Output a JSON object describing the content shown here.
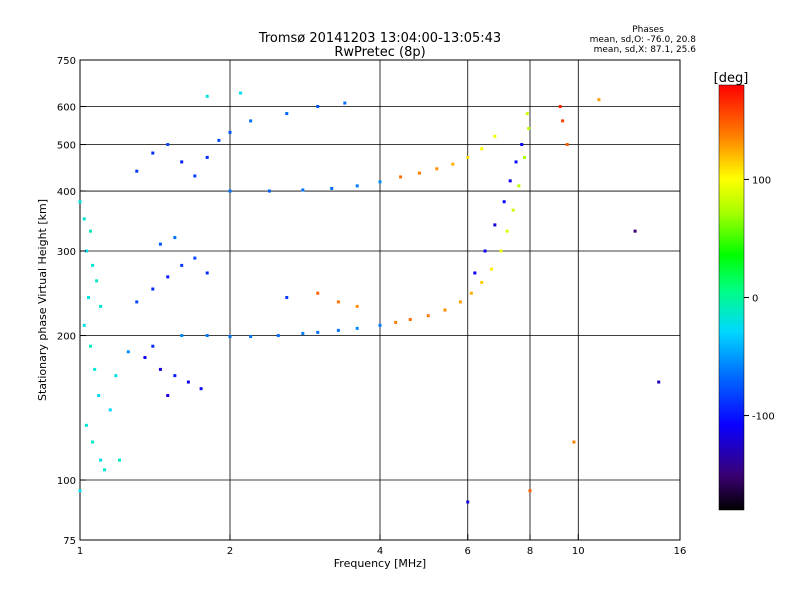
{
  "chart_data": {
    "type": "scatter",
    "title": "Tromsø 20141203 13:04:00-13:05:43",
    "subtitle": "RwPretec (8p)",
    "phases_block": {
      "heading": "Phases",
      "line_o": "mean, sd,O: -76.0, 20.8",
      "line_x": "mean, sd,X:  87.1, 25.6"
    },
    "xlabel": "Frequency [MHz]",
    "ylabel": "Stationary phase Virtual Height [km]",
    "x_scale": "log",
    "y_scale": "log",
    "xlim": [
      1,
      16
    ],
    "ylim": [
      75,
      750
    ],
    "x_ticks": [
      1,
      2,
      4,
      6,
      8,
      10,
      16
    ],
    "x_tick_labels": [
      "1",
      "2",
      "4",
      "6",
      "8",
      "10",
      "16"
    ],
    "x_grid": [
      2,
      4,
      6,
      8,
      10
    ],
    "y_ticks": [
      75,
      100,
      200,
      300,
      400,
      500,
      600,
      750
    ],
    "y_tick_labels": [
      "75",
      "100",
      "200",
      "300",
      "400",
      "500",
      "600",
      "750"
    ],
    "y_grid": [
      100,
      200,
      300,
      400,
      500,
      600
    ],
    "grid": true,
    "colorbar": {
      "label": "[deg]",
      "range": [
        -180,
        180
      ],
      "ticks": [
        100,
        0,
        -100
      ],
      "tick_labels": [
        "100",
        "0",
        "-100"
      ]
    },
    "series": [
      {
        "points": [
          [
            1.0,
            380,
            -20
          ],
          [
            1.02,
            350,
            -15
          ],
          [
            1.05,
            330,
            -10
          ],
          [
            1.03,
            300,
            -25
          ],
          [
            1.06,
            280,
            -18
          ],
          [
            1.08,
            260,
            -12
          ],
          [
            1.04,
            240,
            -22
          ],
          [
            1.1,
            230,
            -15
          ],
          [
            1.02,
            210,
            -20
          ],
          [
            1.05,
            190,
            -10
          ],
          [
            1.07,
            170,
            -15
          ],
          [
            1.09,
            150,
            -25
          ],
          [
            1.03,
            130,
            -18
          ],
          [
            1.06,
            120,
            -12
          ],
          [
            1.1,
            110,
            -20
          ],
          [
            1.12,
            105,
            -15
          ],
          [
            1.0,
            95,
            -22
          ],
          [
            1.2,
            110,
            -10
          ],
          [
            1.15,
            140,
            -30
          ],
          [
            1.18,
            165,
            -20
          ],
          [
            1.25,
            185,
            -60
          ],
          [
            1.35,
            180,
            -110
          ],
          [
            1.45,
            170,
            -120
          ],
          [
            1.55,
            165,
            -100
          ],
          [
            1.65,
            160,
            -115
          ],
          [
            1.75,
            155,
            -105
          ],
          [
            1.5,
            150,
            -120
          ],
          [
            1.4,
            190,
            -95
          ],
          [
            1.3,
            235,
            -85
          ],
          [
            1.4,
            250,
            -95
          ],
          [
            1.5,
            265,
            -100
          ],
          [
            1.6,
            280,
            -90
          ],
          [
            1.7,
            290,
            -85
          ],
          [
            1.8,
            270,
            -95
          ],
          [
            1.45,
            310,
            -80
          ],
          [
            1.55,
            320,
            -70
          ],
          [
            1.3,
            440,
            -90
          ],
          [
            1.4,
            480,
            -95
          ],
          [
            1.5,
            500,
            -85
          ],
          [
            1.6,
            460,
            -100
          ],
          [
            1.7,
            430,
            -90
          ],
          [
            1.8,
            470,
            -95
          ],
          [
            1.9,
            510,
            -85
          ],
          [
            2.0,
            530,
            -80
          ],
          [
            1.6,
            200,
            -60
          ],
          [
            1.8,
            200,
            -65
          ],
          [
            2.0,
            199,
            -70
          ],
          [
            2.2,
            199,
            -68
          ],
          [
            2.5,
            200,
            -70
          ],
          [
            2.8,
            202,
            -65
          ],
          [
            3.0,
            203,
            -70
          ],
          [
            3.3,
            205,
            -68
          ],
          [
            3.6,
            207,
            -60
          ],
          [
            4.0,
            210,
            -65
          ],
          [
            4.3,
            213,
            140
          ],
          [
            4.6,
            216,
            145
          ],
          [
            5.0,
            220,
            140
          ],
          [
            5.4,
            226,
            135
          ],
          [
            5.8,
            235,
            130
          ],
          [
            6.1,
            245,
            125
          ],
          [
            6.4,
            258,
            115
          ],
          [
            6.7,
            275,
            105
          ],
          [
            7.0,
            300,
            95
          ],
          [
            7.2,
            330,
            90
          ],
          [
            7.4,
            365,
            85
          ],
          [
            7.6,
            410,
            80
          ],
          [
            7.8,
            470,
            75
          ],
          [
            7.95,
            540,
            80
          ],
          [
            7.9,
            580,
            85
          ],
          [
            6.2,
            270,
            -110
          ],
          [
            6.5,
            300,
            -115
          ],
          [
            6.8,
            340,
            -120
          ],
          [
            7.1,
            380,
            -110
          ],
          [
            7.3,
            420,
            -115
          ],
          [
            7.5,
            460,
            -105
          ],
          [
            7.7,
            500,
            -110
          ],
          [
            2.0,
            400,
            -70
          ],
          [
            2.4,
            400,
            -75
          ],
          [
            2.8,
            402,
            -70
          ],
          [
            3.2,
            405,
            -72
          ],
          [
            3.6,
            410,
            -65
          ],
          [
            4.0,
            418,
            -60
          ],
          [
            4.4,
            428,
            145
          ],
          [
            4.8,
            436,
            140
          ],
          [
            5.2,
            445,
            135
          ],
          [
            5.6,
            455,
            125
          ],
          [
            6.0,
            470,
            110
          ],
          [
            6.4,
            490,
            100
          ],
          [
            6.8,
            520,
            95
          ],
          [
            2.6,
            240,
            -90
          ],
          [
            3.0,
            245,
            150
          ],
          [
            3.3,
            235,
            145
          ],
          [
            3.6,
            230,
            135
          ],
          [
            2.2,
            560,
            -70
          ],
          [
            2.6,
            580,
            -75
          ],
          [
            3.0,
            600,
            -80
          ],
          [
            3.4,
            610,
            -70
          ],
          [
            1.8,
            630,
            -20
          ],
          [
            2.1,
            640,
            -25
          ],
          [
            9.2,
            600,
            170
          ],
          [
            9.3,
            560,
            160
          ],
          [
            9.5,
            500,
            150
          ],
          [
            9.8,
            120,
            140
          ],
          [
            11.0,
            620,
            130
          ],
          [
            13.0,
            330,
            -150
          ],
          [
            14.5,
            160,
            -130
          ],
          [
            6.0,
            90,
            -120
          ],
          [
            8.0,
            95,
            150
          ]
        ]
      }
    ]
  }
}
